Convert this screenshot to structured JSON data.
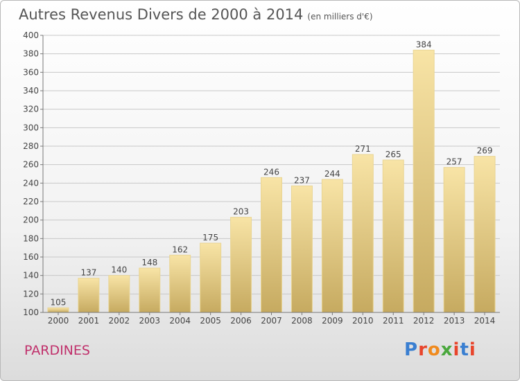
{
  "title": "Autres Revenus Divers de 2000 à 2014",
  "unit_label": "(en milliers d'€)",
  "place": "PARDINES",
  "logo": {
    "text": "Proxiti",
    "colors": [
      "#3a7fd1",
      "#e8452c",
      "#f08a1d",
      "#4aa83d",
      "#e8452c",
      "#3a7fd1",
      "#e8452c"
    ]
  },
  "colors": {
    "bar_top": "#f8e4a6",
    "bar_bottom": "#c6aa60",
    "grid": "#c8c8c8",
    "text": "#444444",
    "place": "#c0306b"
  },
  "chart_data": {
    "type": "bar",
    "title": "Autres Revenus Divers de 2000 à 2014",
    "subtitle": "(en milliers d'€)",
    "xlabel": "",
    "ylabel": "",
    "categories": [
      "2000",
      "2001",
      "2002",
      "2003",
      "2004",
      "2005",
      "2006",
      "2007",
      "2008",
      "2009",
      "2010",
      "2011",
      "2012",
      "2013",
      "2014"
    ],
    "values": [
      105,
      137,
      140,
      148,
      162,
      175,
      203,
      246,
      237,
      244,
      271,
      265,
      384,
      257,
      269
    ],
    "ylim": [
      100,
      400
    ],
    "yticks": [
      100,
      120,
      140,
      160,
      180,
      200,
      220,
      240,
      260,
      280,
      300,
      320,
      340,
      360,
      380,
      400
    ],
    "grid": true,
    "grid_axis": "y",
    "data_labels": true,
    "legend": "none"
  }
}
